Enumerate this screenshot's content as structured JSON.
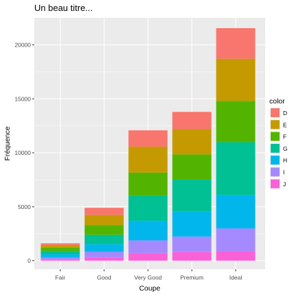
{
  "chart_data": {
    "type": "bar",
    "stacked": true,
    "title": "Un beau titre...",
    "xlabel": "Coupe",
    "ylabel": "Fréquence",
    "categories": [
      "Fair",
      "Good",
      "Very Good",
      "Premium",
      "Ideal"
    ],
    "ylim": [
      0,
      22500
    ],
    "yticks": [
      0,
      5000,
      10000,
      15000,
      20000
    ],
    "ytick_labels": [
      "0",
      "5000",
      "10000",
      "15000",
      "20000"
    ],
    "grid": true,
    "legend": {
      "title": "color",
      "placement": "right"
    },
    "series": [
      {
        "name": "J",
        "color": "#FB61D7",
        "values": [
          119,
          307,
          678,
          808,
          896
        ]
      },
      {
        "name": "I",
        "color": "#A58AFF",
        "values": [
          175,
          522,
          1204,
          1428,
          2093
        ]
      },
      {
        "name": "H",
        "color": "#00B6EB",
        "values": [
          303,
          702,
          1824,
          2360,
          3115
        ]
      },
      {
        "name": "G",
        "color": "#00C094",
        "values": [
          314,
          871,
          2299,
          2924,
          4884
        ]
      },
      {
        "name": "F",
        "color": "#53B400",
        "values": [
          312,
          909,
          2164,
          2331,
          3826
        ]
      },
      {
        "name": "E",
        "color": "#C49A00",
        "values": [
          224,
          933,
          2400,
          2337,
          3903
        ]
      },
      {
        "name": "D",
        "color": "#F8766D",
        "values": [
          163,
          662,
          1513,
          1603,
          2834
        ]
      }
    ],
    "legend_order": [
      "D",
      "E",
      "F",
      "G",
      "H",
      "I",
      "J"
    ]
  }
}
